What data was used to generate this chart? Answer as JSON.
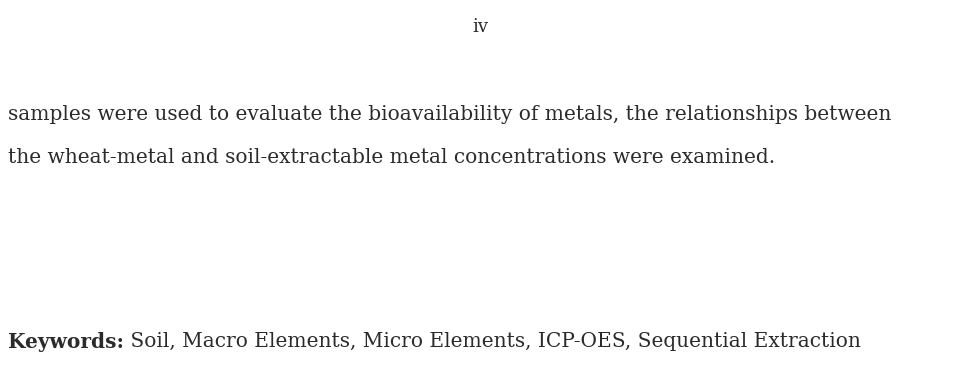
{
  "background_color": "#ffffff",
  "page_number": "iv",
  "page_number_color": "#2b2b2b",
  "page_number_fontsize": 13,
  "body_line1": "samples were used to evaluate the bioavailability of metals, the relationships between",
  "body_line2": "the wheat-metal and soil-extractable metal concentrations were examined.",
  "body_color": "#2b2b2b",
  "body_fontsize": 14.5,
  "keywords_bold": "Keywords:",
  "keywords_rest": " Soil, Macro Elements, Micro Elements, ICP-OES, Sequential Extraction",
  "keywords_color": "#2b2b2b",
  "keywords_fontsize": 14.5,
  "font_family": "DejaVu Serif"
}
